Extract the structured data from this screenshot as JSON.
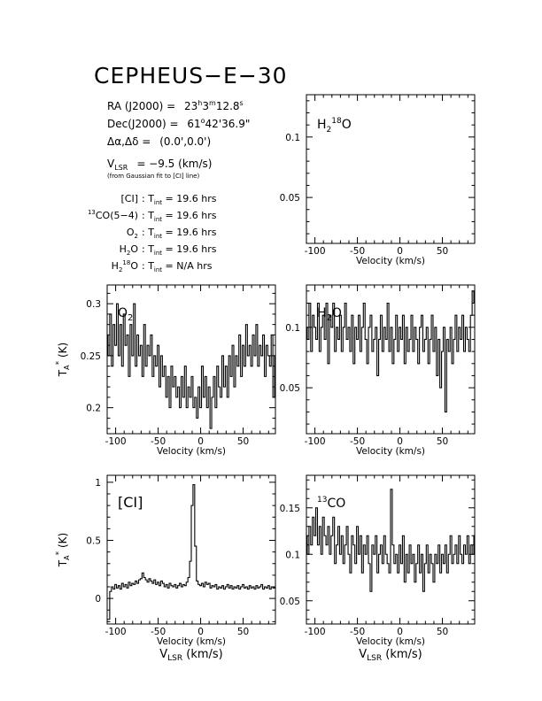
{
  "title": "CEPHEUS−E−30",
  "info": {
    "ra_label": "RA (J2000) =",
    "ra_h": "23",
    "ra_m": "3",
    "ra_s": "12.8",
    "dec_label": "Dec(J2000) =",
    "dec_d": "61",
    "dec_am": "42'36.9\"",
    "offset_label": "Δα,Δδ =",
    "offset_value": "(0.0',0.0')",
    "vlsr_label": "V",
    "vlsr_sub": "LSR",
    "vlsr_value": "= −9.5 (km/s)",
    "vlsr_note": "(from Gaussian fit to [CI] line)",
    "integrations": [
      {
        "line": "[CI]",
        "tint": "19.6 hrs"
      },
      {
        "line": "13CO(5−4)",
        "tint": "19.6 hrs"
      },
      {
        "line": "O2",
        "tint": "19.6 hrs"
      },
      {
        "line": "H2O",
        "tint": "19.6 hrs"
      },
      {
        "line": "H218O",
        "tint": "N/A hrs"
      }
    ]
  },
  "labels": {
    "xlabel": "Velocity (km/s)",
    "xlabel_bottom_sub": "LSR",
    "xlabel_bottom_main": "V",
    "xlabel_bottom_units": "(km/s)",
    "ylabel_main": "T",
    "ylabel_sub": "A",
    "ylabel_sup": "*",
    "ylabel_units": "(K)",
    "tint_prefix": "T",
    "tint_sub": "int",
    "colon": ":"
  },
  "chart_data": [
    {
      "type": "line",
      "id": "h218o",
      "title": "H218O",
      "xlim": [
        -110,
        88
      ],
      "ylim": [
        0.012,
        0.135
      ],
      "xticks": [
        -100,
        -50,
        0,
        50
      ],
      "yticks": [
        0.05,
        0.1
      ],
      "ytick_labels": [
        "0.05",
        "0.1"
      ],
      "x": [],
      "y": []
    },
    {
      "type": "line",
      "id": "o2",
      "title": "O2",
      "xlim": [
        -110,
        88
      ],
      "ylim": [
        0.175,
        0.318
      ],
      "xticks": [
        -100,
        -50,
        0,
        50
      ],
      "yticks": [
        0.2,
        0.25,
        0.3
      ],
      "ytick_labels": [
        "0.2",
        "0.25",
        "0.3"
      ],
      "x": [
        -110,
        -108,
        -106,
        -104,
        -102,
        -100,
        -98,
        -96,
        -94,
        -92,
        -90,
        -88,
        -86,
        -84,
        -82,
        -80,
        -78,
        -76,
        -74,
        -72,
        -70,
        -68,
        -66,
        -64,
        -62,
        -60,
        -58,
        -56,
        -54,
        -52,
        -50,
        -48,
        -46,
        -44,
        -42,
        -40,
        -38,
        -36,
        -34,
        -32,
        -30,
        -28,
        -26,
        -24,
        -22,
        -20,
        -18,
        -16,
        -14,
        -12,
        -10,
        -8,
        -6,
        -4,
        -2,
        0,
        2,
        4,
        6,
        8,
        10,
        12,
        14,
        16,
        18,
        20,
        22,
        24,
        26,
        28,
        30,
        32,
        34,
        36,
        38,
        40,
        42,
        44,
        46,
        48,
        50,
        52,
        54,
        56,
        58,
        60,
        62,
        64,
        66,
        68,
        70,
        72,
        74,
        76,
        78,
        80,
        82,
        84,
        86,
        88
      ],
      "y": [
        0.27,
        0.25,
        0.29,
        0.24,
        0.28,
        0.26,
        0.3,
        0.25,
        0.28,
        0.24,
        0.29,
        0.26,
        0.27,
        0.23,
        0.28,
        0.25,
        0.3,
        0.24,
        0.27,
        0.25,
        0.26,
        0.23,
        0.28,
        0.24,
        0.26,
        0.25,
        0.27,
        0.23,
        0.25,
        0.24,
        0.26,
        0.22,
        0.25,
        0.23,
        0.24,
        0.21,
        0.23,
        0.2,
        0.24,
        0.22,
        0.23,
        0.21,
        0.22,
        0.2,
        0.23,
        0.21,
        0.24,
        0.2,
        0.22,
        0.21,
        0.23,
        0.2,
        0.21,
        0.19,
        0.22,
        0.2,
        0.24,
        0.21,
        0.23,
        0.2,
        0.22,
        0.18,
        0.21,
        0.23,
        0.2,
        0.24,
        0.22,
        0.21,
        0.25,
        0.22,
        0.24,
        0.21,
        0.25,
        0.23,
        0.26,
        0.22,
        0.25,
        0.24,
        0.27,
        0.23,
        0.26,
        0.24,
        0.28,
        0.25,
        0.26,
        0.24,
        0.27,
        0.25,
        0.28,
        0.24,
        0.26,
        0.25,
        0.27,
        0.23,
        0.26,
        0.25,
        0.24,
        0.27,
        0.21,
        0.25
      ]
    },
    {
      "type": "line",
      "id": "h2o",
      "title": "H2O",
      "xlim": [
        -110,
        88
      ],
      "ylim": [
        0.012,
        0.135
      ],
      "xticks": [
        -100,
        -50,
        0,
        50
      ],
      "yticks": [
        0.05,
        0.1
      ],
      "ytick_labels": [
        "0.05",
        "0.1"
      ],
      "x": [
        -110,
        -108,
        -106,
        -104,
        -102,
        -100,
        -98,
        -96,
        -94,
        -92,
        -90,
        -88,
        -86,
        -84,
        -82,
        -80,
        -78,
        -76,
        -74,
        -72,
        -70,
        -68,
        -66,
        -64,
        -62,
        -60,
        -58,
        -56,
        -54,
        -52,
        -50,
        -48,
        -46,
        -44,
        -42,
        -40,
        -38,
        -36,
        -34,
        -32,
        -30,
        -28,
        -26,
        -24,
        -22,
        -20,
        -18,
        -16,
        -14,
        -12,
        -10,
        -8,
        -6,
        -4,
        -2,
        0,
        2,
        4,
        6,
        8,
        10,
        12,
        14,
        16,
        18,
        20,
        22,
        24,
        26,
        28,
        30,
        32,
        34,
        36,
        38,
        40,
        42,
        44,
        46,
        48,
        50,
        52,
        54,
        56,
        58,
        60,
        62,
        64,
        66,
        68,
        70,
        72,
        74,
        76,
        78,
        80,
        82,
        84,
        86,
        88
      ],
      "y": [
        0.1,
        0.09,
        0.12,
        0.08,
        0.11,
        0.1,
        0.09,
        0.12,
        0.08,
        0.1,
        0.11,
        0.09,
        0.12,
        0.07,
        0.11,
        0.1,
        0.12,
        0.08,
        0.1,
        0.09,
        0.11,
        0.08,
        0.1,
        0.12,
        0.09,
        0.1,
        0.08,
        0.11,
        0.07,
        0.1,
        0.09,
        0.11,
        0.08,
        0.1,
        0.12,
        0.09,
        0.07,
        0.1,
        0.11,
        0.08,
        0.09,
        0.1,
        0.06,
        0.09,
        0.11,
        0.08,
        0.1,
        0.09,
        0.12,
        0.08,
        0.1,
        0.07,
        0.09,
        0.11,
        0.08,
        0.1,
        0.09,
        0.11,
        0.07,
        0.1,
        0.08,
        0.09,
        0.11,
        0.08,
        0.1,
        0.09,
        0.07,
        0.1,
        0.11,
        0.08,
        0.09,
        0.1,
        0.07,
        0.09,
        0.11,
        0.08,
        0.1,
        0.06,
        0.09,
        0.05,
        0.08,
        0.1,
        0.03,
        0.09,
        0.08,
        0.1,
        0.07,
        0.09,
        0.11,
        0.08,
        0.1,
        0.09,
        0.11,
        0.08,
        0.1,
        0.09,
        0.08,
        0.11,
        0.13,
        0.12
      ]
    },
    {
      "type": "line",
      "id": "ci",
      "title": "[CI]",
      "xlim": [
        -110,
        88
      ],
      "ylim": [
        -0.22,
        1.06
      ],
      "xticks": [
        -100,
        -50,
        0,
        50
      ],
      "yticks": [
        0,
        0.5,
        1
      ],
      "ytick_labels": [
        "0",
        "0.5",
        "1"
      ],
      "x": [
        -110,
        -108,
        -106,
        -104,
        -102,
        -100,
        -98,
        -96,
        -94,
        -92,
        -90,
        -88,
        -86,
        -84,
        -82,
        -80,
        -78,
        -76,
        -74,
        -72,
        -70,
        -68,
        -66,
        -64,
        -62,
        -60,
        -58,
        -56,
        -54,
        -52,
        -50,
        -48,
        -46,
        -44,
        -42,
        -40,
        -38,
        -36,
        -34,
        -32,
        -30,
        -28,
        -26,
        -24,
        -22,
        -20,
        -18,
        -16,
        -14,
        -12,
        -10,
        -8,
        -6,
        -4,
        -2,
        0,
        2,
        4,
        6,
        8,
        10,
        12,
        14,
        16,
        18,
        20,
        22,
        24,
        26,
        28,
        30,
        32,
        34,
        36,
        38,
        40,
        42,
        44,
        46,
        48,
        50,
        52,
        54,
        56,
        58,
        60,
        62,
        64,
        66,
        68,
        70,
        72,
        74,
        76,
        78,
        80,
        82,
        84,
        86,
        88
      ],
      "y": [
        -0.18,
        -0.18,
        0.06,
        0.1,
        0.08,
        0.12,
        0.09,
        0.11,
        0.08,
        0.13,
        0.1,
        0.12,
        0.09,
        0.14,
        0.11,
        0.13,
        0.12,
        0.15,
        0.13,
        0.16,
        0.17,
        0.22,
        0.18,
        0.16,
        0.14,
        0.17,
        0.15,
        0.13,
        0.16,
        0.12,
        0.14,
        0.11,
        0.15,
        0.13,
        0.1,
        0.12,
        0.09,
        0.13,
        0.11,
        0.1,
        0.12,
        0.09,
        0.11,
        0.13,
        0.1,
        0.12,
        0.11,
        0.14,
        0.18,
        0.32,
        0.8,
        0.98,
        0.45,
        0.15,
        0.12,
        0.11,
        0.13,
        0.1,
        0.14,
        0.12,
        0.13,
        0.09,
        0.11,
        0.1,
        0.12,
        0.08,
        0.1,
        0.09,
        0.11,
        0.08,
        0.1,
        0.12,
        0.09,
        0.11,
        0.08,
        0.1,
        0.09,
        0.11,
        0.08,
        0.1,
        0.12,
        0.09,
        0.1,
        0.08,
        0.11,
        0.09,
        0.1,
        0.08,
        0.11,
        0.09,
        0.1,
        0.12,
        0.08,
        0.1,
        0.09,
        0.11,
        0.08,
        0.1,
        0.09,
        0.1
      ]
    },
    {
      "type": "line",
      "id": "13co",
      "title": "13CO",
      "xlim": [
        -110,
        88
      ],
      "ylim": [
        0.025,
        0.185
      ],
      "xticks": [
        -100,
        -50,
        0,
        50
      ],
      "yticks": [
        0.05,
        0.1,
        0.15
      ],
      "ytick_labels": [
        "0.05",
        "0.1",
        "0.15"
      ],
      "x": [
        -110,
        -108,
        -106,
        -104,
        -102,
        -100,
        -98,
        -96,
        -94,
        -92,
        -90,
        -88,
        -86,
        -84,
        -82,
        -80,
        -78,
        -76,
        -74,
        -72,
        -70,
        -68,
        -66,
        -64,
        -62,
        -60,
        -58,
        -56,
        -54,
        -52,
        -50,
        -48,
        -46,
        -44,
        -42,
        -40,
        -38,
        -36,
        -34,
        -32,
        -30,
        -28,
        -26,
        -24,
        -22,
        -20,
        -18,
        -16,
        -14,
        -12,
        -10,
        -8,
        -6,
        -4,
        -2,
        0,
        2,
        4,
        6,
        8,
        10,
        12,
        14,
        16,
        18,
        20,
        22,
        24,
        26,
        28,
        30,
        32,
        34,
        36,
        38,
        40,
        42,
        44,
        46,
        48,
        50,
        52,
        54,
        56,
        58,
        60,
        62,
        64,
        66,
        68,
        70,
        72,
        74,
        76,
        78,
        80,
        82,
        84,
        86,
        88
      ],
      "y": [
        0.12,
        0.1,
        0.13,
        0.11,
        0.14,
        0.12,
        0.15,
        0.11,
        0.13,
        0.1,
        0.14,
        0.12,
        0.11,
        0.13,
        0.1,
        0.12,
        0.14,
        0.09,
        0.11,
        0.13,
        0.1,
        0.12,
        0.09,
        0.11,
        0.13,
        0.1,
        0.08,
        0.12,
        0.11,
        0.09,
        0.13,
        0.1,
        0.12,
        0.08,
        0.11,
        0.1,
        0.12,
        0.09,
        0.06,
        0.11,
        0.1,
        0.12,
        0.08,
        0.1,
        0.11,
        0.09,
        0.12,
        0.1,
        0.09,
        0.08,
        0.17,
        0.11,
        0.09,
        0.1,
        0.08,
        0.11,
        0.09,
        0.12,
        0.07,
        0.1,
        0.08,
        0.11,
        0.09,
        0.1,
        0.07,
        0.09,
        0.11,
        0.08,
        0.1,
        0.06,
        0.09,
        0.11,
        0.08,
        0.1,
        0.09,
        0.07,
        0.1,
        0.09,
        0.11,
        0.08,
        0.1,
        0.09,
        0.11,
        0.08,
        0.1,
        0.12,
        0.09,
        0.1,
        0.11,
        0.09,
        0.12,
        0.1,
        0.09,
        0.11,
        0.1,
        0.12,
        0.09,
        0.11,
        0.1,
        0.12
      ]
    }
  ]
}
